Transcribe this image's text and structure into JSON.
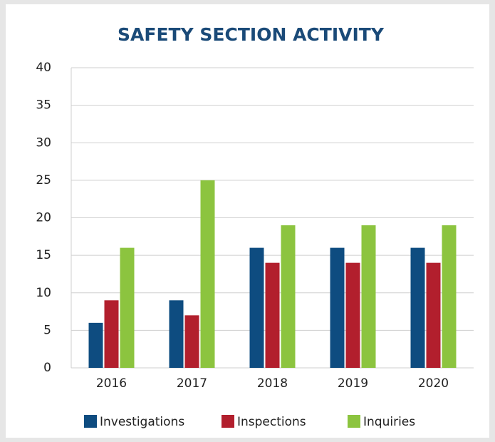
{
  "chart_data": {
    "type": "bar",
    "title": "SAFETY SECTION ACTIVITY",
    "categories": [
      "2016",
      "2017",
      "2018",
      "2019",
      "2020"
    ],
    "series": [
      {
        "name": "Investigations",
        "color": "#0e4c80",
        "values": [
          6,
          9,
          16,
          16,
          16
        ]
      },
      {
        "name": "Inspections",
        "color": "#b21f2d",
        "values": [
          9,
          7,
          14,
          14,
          14
        ]
      },
      {
        "name": "Inquiries",
        "color": "#8cc43f",
        "values": [
          16,
          25,
          19,
          19,
          19
        ]
      }
    ],
    "ylim": [
      0,
      40
    ],
    "yticks": [
      0,
      5,
      10,
      15,
      20,
      25,
      30,
      35,
      40
    ],
    "grid": true,
    "legend": "bottom"
  }
}
